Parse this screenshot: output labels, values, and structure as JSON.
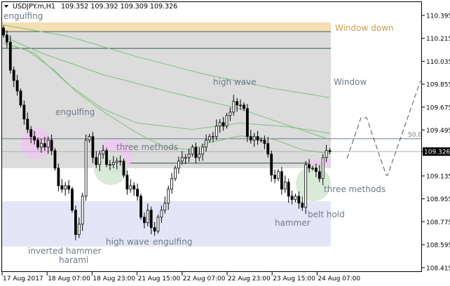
{
  "header": {
    "symbol": "USDJPY.m,H1",
    "ohlc": "109.352 109.392 109.309 109.326",
    "menu_icon": "triangle-down-icon"
  },
  "chart_data": {
    "type": "candlestick",
    "symbol": "USDJPY.m",
    "timeframe": "H1",
    "current_price": 109.326,
    "current_price_label": "109.326",
    "ylim": [
      108.415,
      110.45
    ],
    "y_ticks": [
      "110.395",
      "110.215",
      "110.035",
      "109.855",
      "109.675",
      "109.495",
      "109.326",
      "109.135",
      "108.955",
      "108.775",
      "108.595",
      "108.415"
    ],
    "y_tick_values": [
      110.395,
      110.215,
      110.035,
      109.855,
      109.675,
      109.495,
      109.326,
      109.135,
      108.955,
      108.775,
      108.595,
      108.415
    ],
    "x_ticks": [
      "17 Aug 2017",
      "18 Aug 07:00",
      "18 Aug 23:00",
      "21 Aug 15:00",
      "22 Aug 07:00",
      "22 Aug 23:00",
      "23 Aug 15:00",
      "24 Aug 07:00"
    ],
    "first_open": 110.296,
    "closes": [
      110.241,
      110.186,
      109.966,
      109.884,
      109.801,
      109.691,
      109.581,
      109.499,
      109.444,
      109.416,
      109.361,
      109.389,
      109.361,
      109.416,
      109.334,
      109.196,
      109.058,
      109.031,
      109.058,
      109.031,
      108.866,
      108.674,
      108.756,
      108.976,
      109.416,
      109.444,
      109.279,
      109.224,
      109.306,
      109.334,
      109.224,
      109.224,
      109.24,
      109.251,
      109.251,
      109.141,
      109.031,
      109.058,
      109.031,
      108.976,
      108.811,
      108.767,
      108.866,
      108.729,
      108.701,
      108.811,
      108.866,
      108.921,
      109.031,
      109.114,
      109.196,
      109.251,
      109.279,
      109.279,
      109.306,
      109.361,
      109.279,
      109.306,
      109.361,
      109.416,
      109.444,
      109.444,
      109.526,
      109.554,
      109.526,
      109.609,
      109.636,
      109.719,
      109.691,
      109.691,
      109.664,
      109.444,
      109.416,
      109.444,
      109.416,
      109.416,
      109.389,
      109.306,
      109.141,
      109.114,
      109.169,
      109.031,
      109.086,
      108.976,
      108.949,
      108.976,
      108.921,
      108.888,
      109.224,
      109.196,
      109.196,
      109.169,
      109.114,
      109.279,
      109.334,
      109.326
    ],
    "moving_averages": [
      [
        [
          0,
          110.32
        ],
        [
          19,
          110.23
        ],
        [
          39,
          110.07
        ],
        [
          59,
          109.93
        ],
        [
          79,
          109.82
        ],
        [
          95,
          109.75
        ]
      ],
      [
        [
          0,
          110.23
        ],
        [
          11,
          110.1
        ],
        [
          29,
          109.93
        ],
        [
          49,
          109.79
        ],
        [
          69,
          109.66
        ],
        [
          95,
          109.42
        ]
      ],
      [
        [
          0,
          110.18
        ],
        [
          9,
          110.1
        ],
        [
          19,
          109.85
        ],
        [
          29,
          109.66
        ],
        [
          39,
          109.55
        ],
        [
          55,
          109.5
        ],
        [
          69,
          109.55
        ],
        [
          83,
          109.52
        ],
        [
          95,
          109.47
        ]
      ],
      [
        [
          0,
          110.18
        ],
        [
          7,
          110.12
        ],
        [
          15,
          109.96
        ],
        [
          21,
          109.8
        ],
        [
          29,
          109.64
        ],
        [
          39,
          109.47
        ],
        [
          47,
          109.36
        ],
        [
          55,
          109.34
        ],
        [
          59,
          109.39
        ],
        [
          69,
          109.45
        ],
        [
          79,
          109.42
        ],
        [
          87,
          109.34
        ],
        [
          95,
          109.31
        ]
      ]
    ],
    "zones": {
      "window_down_band": [
        110.268,
        110.34
      ],
      "window_box": [
        109.196,
        110.263
      ],
      "window_top_line": 110.136,
      "support_box": [
        108.58,
        108.937
      ],
      "support_line": 109.235
    },
    "fib_level": {
      "label": "50.0",
      "price": 109.427
    },
    "annotations": [
      "engulfing",
      "Window down",
      "Window",
      "high wave",
      "engulfing",
      "three methods",
      "three methods",
      "belt hold",
      "hammer",
      "high wave",
      "engulfing",
      "inverted hammer",
      "harami"
    ],
    "colors": {
      "bull": "#ffffff",
      "bear": "#000000",
      "ma": "#7fbf7f",
      "window_down": "#f5deb3",
      "window_down_text": "#c8a050",
      "window_box": "#dcdcdc",
      "support_box": "#e4e6f8",
      "pink": "#f0c8f0",
      "green": "#d2e6d2",
      "fib": "#6a7a8a",
      "label": "#6f7a88"
    }
  }
}
